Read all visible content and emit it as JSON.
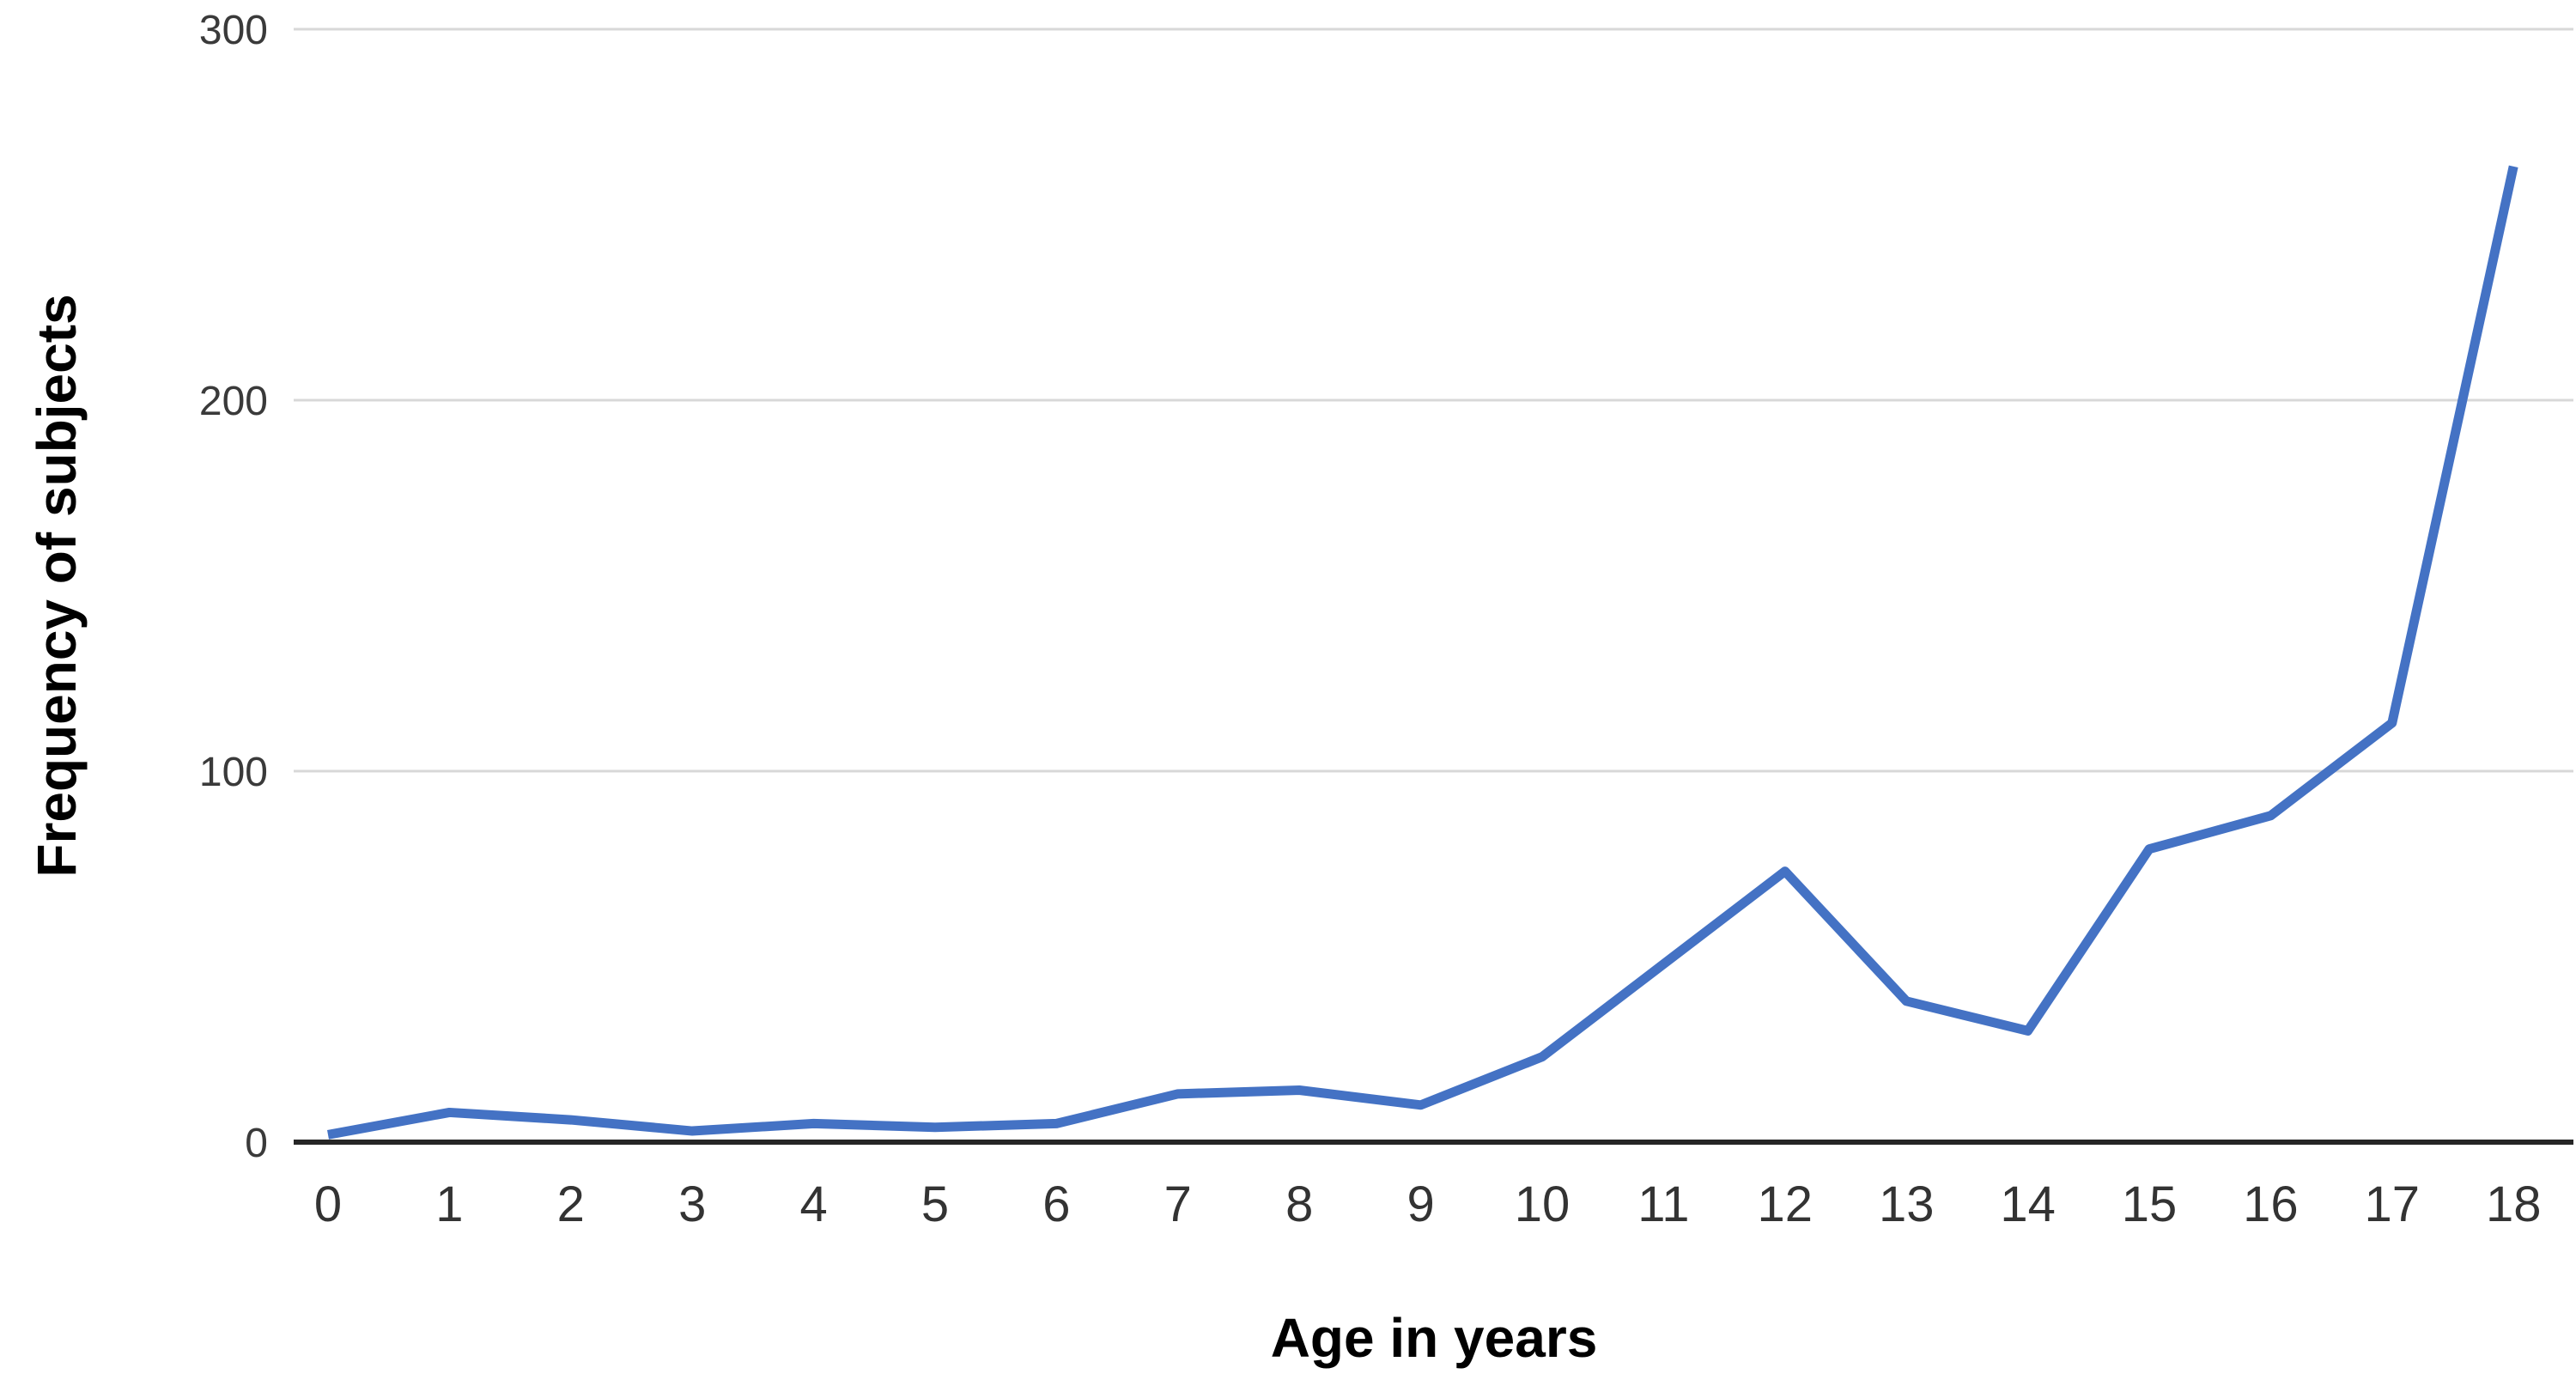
{
  "chart_data": {
    "type": "line",
    "title": "",
    "xlabel": "Age in years",
    "ylabel": "Frequency of subjects",
    "x": [
      0,
      1,
      2,
      3,
      4,
      5,
      6,
      7,
      8,
      9,
      10,
      11,
      12,
      13,
      14,
      15,
      16,
      17,
      18
    ],
    "x_tick_labels": [
      "0",
      "1",
      "2",
      "3",
      "4",
      "5",
      "6",
      "7",
      "8",
      "9",
      "10",
      "11",
      "12",
      "13",
      "14",
      "15",
      "16",
      "17",
      "18"
    ],
    "series": [
      {
        "name": "Frequency of subjects",
        "values": [
          2,
          8,
          6,
          3,
          5,
          4,
          5,
          13,
          14,
          10,
          23,
          48,
          73,
          38,
          30,
          79,
          88,
          113,
          263
        ]
      }
    ],
    "ylim": [
      0,
      300
    ],
    "yticks": [
      0,
      100,
      200,
      300
    ],
    "ytick_labels": [
      "0",
      "100",
      "200",
      "300"
    ],
    "grid": "horizontal",
    "legend_position": "none",
    "colors": {
      "line": "#4472c4",
      "gridline": "#d8d8d8",
      "axis": "#262626",
      "y_tick_label": "#3a3a3a",
      "x_tick_label": "#333333",
      "axis_title": "#000000",
      "background": "#ffffff"
    }
  }
}
